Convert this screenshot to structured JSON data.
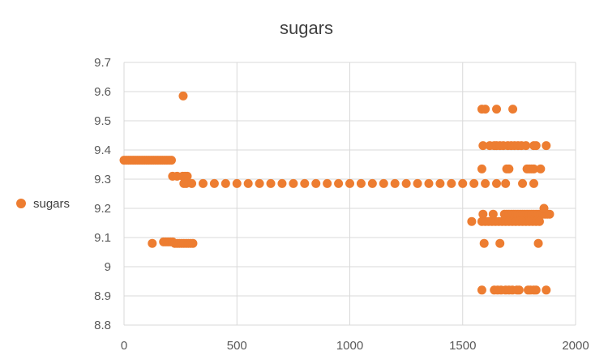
{
  "chart_data": {
    "type": "scatter",
    "title": "sugars",
    "xlabel": "",
    "ylabel": "",
    "xlim": [
      0,
      2000
    ],
    "ylim": [
      8.8,
      9.7
    ],
    "x_ticks": [
      0,
      500,
      1000,
      1500,
      2000
    ],
    "y_ticks": [
      8.8,
      8.9,
      9.0,
      9.1,
      9.2,
      9.3,
      9.4,
      9.5,
      9.6,
      9.7
    ],
    "x_tick_labels": [
      "0",
      "500",
      "1000",
      "1500",
      "2000"
    ],
    "y_tick_labels": [
      "8.8",
      "8.9",
      "9",
      "9.1",
      "9.2",
      "9.3",
      "9.4",
      "9.5",
      "9.6",
      "9.7"
    ],
    "grid": true,
    "legend_position": "left",
    "color": "#ED7D31",
    "series": [
      {
        "name": "sugars",
        "points": [
          [
            0,
            9.365
          ],
          [
            10,
            9.365
          ],
          [
            20,
            9.365
          ],
          [
            30,
            9.365
          ],
          [
            40,
            9.365
          ],
          [
            50,
            9.365
          ],
          [
            60,
            9.365
          ],
          [
            70,
            9.365
          ],
          [
            80,
            9.365
          ],
          [
            90,
            9.365
          ],
          [
            100,
            9.365
          ],
          [
            110,
            9.365
          ],
          [
            120,
            9.365
          ],
          [
            130,
            9.365
          ],
          [
            140,
            9.365
          ],
          [
            150,
            9.365
          ],
          [
            160,
            9.365
          ],
          [
            170,
            9.365
          ],
          [
            180,
            9.365
          ],
          [
            190,
            9.365
          ],
          [
            200,
            9.365
          ],
          [
            210,
            9.365
          ],
          [
            125,
            9.08
          ],
          [
            175,
            9.085
          ],
          [
            185,
            9.085
          ],
          [
            195,
            9.085
          ],
          [
            205,
            9.085
          ],
          [
            215,
            9.085
          ],
          [
            225,
            9.08
          ],
          [
            235,
            9.08
          ],
          [
            245,
            9.08
          ],
          [
            255,
            9.08
          ],
          [
            265,
            9.08
          ],
          [
            275,
            9.08
          ],
          [
            285,
            9.08
          ],
          [
            295,
            9.08
          ],
          [
            305,
            9.08
          ],
          [
            215,
            9.31
          ],
          [
            235,
            9.31
          ],
          [
            260,
            9.31
          ],
          [
            270,
            9.31
          ],
          [
            280,
            9.31
          ],
          [
            262,
            9.585
          ],
          [
            265,
            9.285
          ],
          [
            275,
            9.285
          ],
          [
            300,
            9.285
          ],
          [
            350,
            9.285
          ],
          [
            400,
            9.285
          ],
          [
            450,
            9.285
          ],
          [
            500,
            9.285
          ],
          [
            550,
            9.285
          ],
          [
            600,
            9.285
          ],
          [
            650,
            9.285
          ],
          [
            700,
            9.285
          ],
          [
            750,
            9.285
          ],
          [
            800,
            9.285
          ],
          [
            850,
            9.285
          ],
          [
            900,
            9.285
          ],
          [
            950,
            9.285
          ],
          [
            1000,
            9.285
          ],
          [
            1050,
            9.285
          ],
          [
            1100,
            9.285
          ],
          [
            1150,
            9.285
          ],
          [
            1200,
            9.285
          ],
          [
            1250,
            9.285
          ],
          [
            1300,
            9.285
          ],
          [
            1350,
            9.285
          ],
          [
            1400,
            9.285
          ],
          [
            1450,
            9.285
          ],
          [
            1500,
            9.285
          ],
          [
            1550,
            9.285
          ],
          [
            1600,
            9.285
          ],
          [
            1650,
            9.285
          ],
          [
            1690,
            9.285
          ],
          [
            1765,
            9.285
          ],
          [
            1815,
            9.285
          ],
          [
            1585,
            9.54
          ],
          [
            1600,
            9.54
          ],
          [
            1650,
            9.54
          ],
          [
            1722,
            9.54
          ],
          [
            1590,
            9.415
          ],
          [
            1620,
            9.415
          ],
          [
            1640,
            9.415
          ],
          [
            1650,
            9.415
          ],
          [
            1665,
            9.415
          ],
          [
            1680,
            9.415
          ],
          [
            1700,
            9.415
          ],
          [
            1715,
            9.415
          ],
          [
            1730,
            9.415
          ],
          [
            1745,
            9.415
          ],
          [
            1760,
            9.415
          ],
          [
            1780,
            9.415
          ],
          [
            1815,
            9.415
          ],
          [
            1825,
            9.415
          ],
          [
            1870,
            9.415
          ],
          [
            1585,
            9.335
          ],
          [
            1695,
            9.335
          ],
          [
            1705,
            9.335
          ],
          [
            1785,
            9.335
          ],
          [
            1795,
            9.335
          ],
          [
            1805,
            9.335
          ],
          [
            1815,
            9.335
          ],
          [
            1845,
            9.335
          ],
          [
            1590,
            9.18
          ],
          [
            1635,
            9.18
          ],
          [
            1685,
            9.18
          ],
          [
            1695,
            9.18
          ],
          [
            1705,
            9.18
          ],
          [
            1715,
            9.18
          ],
          [
            1725,
            9.18
          ],
          [
            1735,
            9.18
          ],
          [
            1745,
            9.18
          ],
          [
            1755,
            9.18
          ],
          [
            1765,
            9.18
          ],
          [
            1775,
            9.18
          ],
          [
            1785,
            9.18
          ],
          [
            1795,
            9.18
          ],
          [
            1805,
            9.18
          ],
          [
            1815,
            9.18
          ],
          [
            1825,
            9.18
          ],
          [
            1835,
            9.18
          ],
          [
            1845,
            9.18
          ],
          [
            1855,
            9.18
          ],
          [
            1865,
            9.18
          ],
          [
            1875,
            9.18
          ],
          [
            1885,
            9.18
          ],
          [
            1860,
            9.2
          ],
          [
            1540,
            9.155
          ],
          [
            1585,
            9.155
          ],
          [
            1600,
            9.155
          ],
          [
            1615,
            9.155
          ],
          [
            1630,
            9.155
          ],
          [
            1645,
            9.155
          ],
          [
            1660,
            9.155
          ],
          [
            1675,
            9.155
          ],
          [
            1690,
            9.155
          ],
          [
            1705,
            9.155
          ],
          [
            1720,
            9.155
          ],
          [
            1735,
            9.155
          ],
          [
            1750,
            9.155
          ],
          [
            1765,
            9.155
          ],
          [
            1780,
            9.155
          ],
          [
            1795,
            9.155
          ],
          [
            1810,
            9.155
          ],
          [
            1825,
            9.155
          ],
          [
            1840,
            9.155
          ],
          [
            1595,
            9.08
          ],
          [
            1665,
            9.08
          ],
          [
            1835,
            9.08
          ],
          [
            1585,
            8.92
          ],
          [
            1640,
            8.92
          ],
          [
            1655,
            8.92
          ],
          [
            1670,
            8.92
          ],
          [
            1690,
            8.92
          ],
          [
            1705,
            8.92
          ],
          [
            1720,
            8.92
          ],
          [
            1740,
            8.92
          ],
          [
            1750,
            8.92
          ],
          [
            1790,
            8.92
          ],
          [
            1800,
            8.92
          ],
          [
            1815,
            8.92
          ],
          [
            1825,
            8.92
          ],
          [
            1870,
            8.92
          ]
        ]
      }
    ]
  }
}
